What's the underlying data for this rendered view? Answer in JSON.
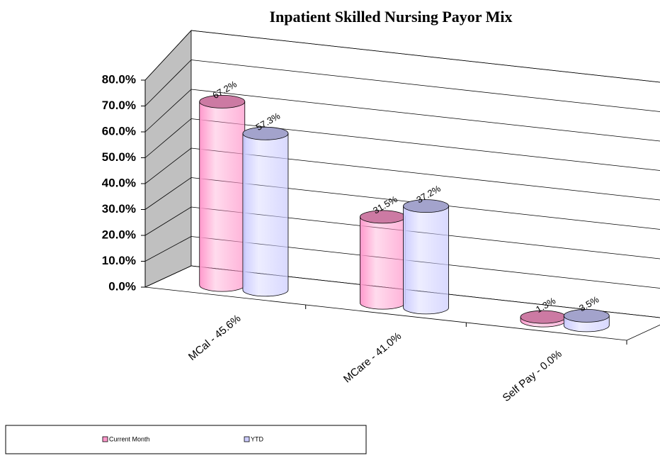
{
  "chart_data": {
    "type": "bar3d",
    "title": "Inpatient Skilled Nursing Payor Mix",
    "categories": [
      "MCal - 45.6%",
      "MCare - 41.0%",
      "Self Pay - 0.0%"
    ],
    "series": [
      {
        "name": "Current Month",
        "color": "#ff99cc",
        "values": [
          67.2,
          31.5,
          1.3
        ],
        "value_labels": [
          "67.2%",
          "31.5%",
          "1.3%"
        ]
      },
      {
        "name": "YTD",
        "color": "#ccccff",
        "values": [
          57.3,
          37.2,
          3.5
        ],
        "value_labels": [
          "57.3%",
          "37.2%",
          "3.5%"
        ]
      }
    ],
    "ylim": [
      0,
      80
    ],
    "yticks": [
      {
        "value": 0,
        "label": "0.0%"
      },
      {
        "value": 10,
        "label": "10.0%"
      },
      {
        "value": 20,
        "label": "20.0%"
      },
      {
        "value": 30,
        "label": "30.0%"
      },
      {
        "value": 40,
        "label": "40.0%"
      },
      {
        "value": 50,
        "label": "50.0%"
      },
      {
        "value": 60,
        "label": "60.0%"
      },
      {
        "value": 70,
        "label": "70.0%"
      },
      {
        "value": 80,
        "label": "80.0%"
      }
    ],
    "grid": true,
    "legend": "bottom-left"
  }
}
